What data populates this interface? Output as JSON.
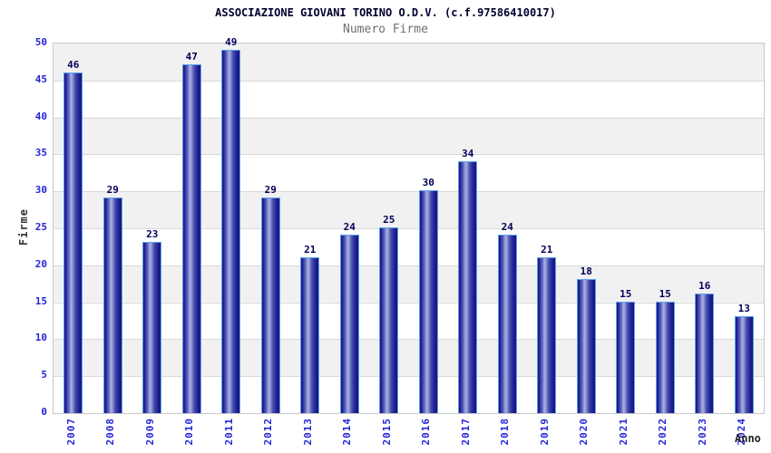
{
  "chart_data": {
    "type": "bar",
    "title": "ASSOCIAZIONE GIOVANI TORINO O.D.V. (c.f.97586410017)",
    "subtitle": "Numero Firme",
    "xlabel": "Anno",
    "ylabel": "Firme",
    "categories": [
      "2007",
      "2008",
      "2009",
      "2010",
      "2011",
      "2012",
      "2013",
      "2014",
      "2015",
      "2016",
      "2017",
      "2018",
      "2019",
      "2020",
      "2021",
      "2022",
      "2023",
      "2024"
    ],
    "values": [
      46,
      29,
      23,
      47,
      49,
      29,
      21,
      24,
      25,
      30,
      34,
      24,
      21,
      18,
      15,
      15,
      16,
      13
    ],
    "ylim": [
      0,
      50
    ],
    "ytick_step": 5,
    "yticks": [
      0,
      5,
      10,
      15,
      20,
      25,
      30,
      35,
      40,
      45,
      50
    ],
    "grid": true,
    "bands": true,
    "legend": false,
    "bar_value_labels": true
  },
  "colors": {
    "title": "#00002e",
    "subtitle": "#6f6f6f",
    "tick_label": "#2424d9",
    "bar_value_label": "#00005a",
    "axis_title": "#333333",
    "band_gray": "#f1f1f1",
    "band_white": "#ffffff",
    "gridline": "#d9d9d9",
    "plot_border": "#c9c9c9",
    "bar_outline": "#5ba3e8",
    "bar_dark": "#14147a",
    "bar_light": "#a8b0e2"
  }
}
